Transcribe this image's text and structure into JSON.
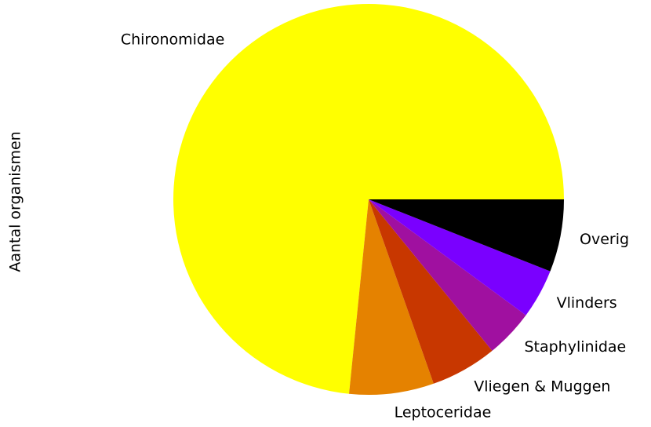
{
  "chart_data": {
    "type": "pie",
    "ylabel": "Aantal organismen",
    "categories": [
      "Chironomidae",
      "Leptoceridae",
      "Vliegen & Muggen",
      "Staphylinidae",
      "Vlinders",
      "Overig"
    ],
    "values": [
      73.4,
      7.0,
      5.5,
      4.0,
      4.1,
      6.0
    ],
    "colors": [
      "#ffff00",
      "#e58200",
      "#c83700",
      "#a010a0",
      "#7a00ff",
      "#000000"
    ]
  }
}
